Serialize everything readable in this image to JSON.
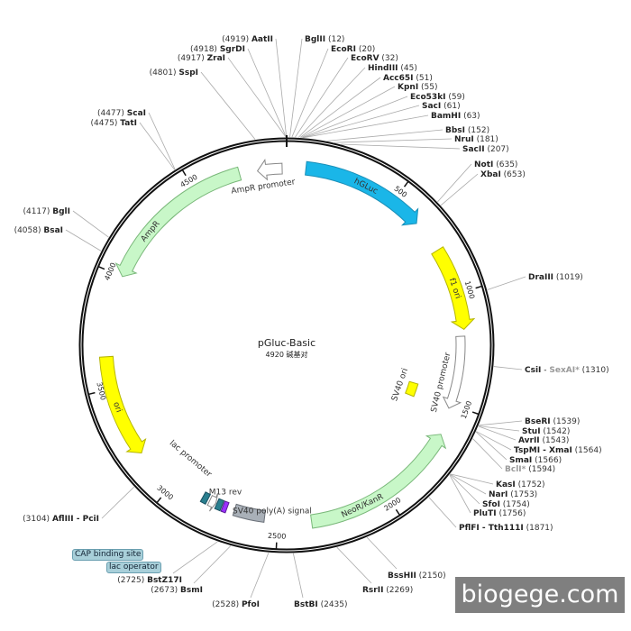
{
  "plasmid": {
    "name": "pGluc-Basic",
    "length_label": "4920 碱基对",
    "length": 4920
  },
  "ticks": [
    500,
    1000,
    1500,
    2000,
    2500,
    3000,
    3500,
    4000,
    4500
  ],
  "features": [
    {
      "name": "hGLuc",
      "start": 85,
      "end": 640,
      "dir": 1,
      "kind": "arrow",
      "color": "#1ab6e8",
      "stroke": "#1a8fb8",
      "label": "hGLuc"
    },
    {
      "name": "f1 ori",
      "start": 790,
      "end": 1160,
      "dir": 1,
      "kind": "arrow",
      "color": "#ffff00",
      "stroke": "#b5b500",
      "label": "f1 ori"
    },
    {
      "name": "SV40 promoter",
      "start": 1190,
      "end": 1520,
      "dir": 1,
      "kind": "arrow",
      "color": "#ffffff",
      "stroke": "#888888",
      "label": "SV40 promoter"
    },
    {
      "name": "SV40 ori",
      "start": 1455,
      "end": 1530,
      "dir": 0,
      "kind": "box",
      "color": "#ffff00",
      "stroke": "#b5b500",
      "label": "SV40 ori"
    },
    {
      "name": "NeoR/KanR",
      "start": 1640,
      "end": 2350,
      "dir": -1,
      "kind": "arrow",
      "color": "#c8f7c8",
      "stroke": "#7ab87a",
      "label": "NeoR/KanR"
    },
    {
      "name": "SV40 poly(A) signal",
      "start": 2560,
      "end": 2700,
      "dir": 0,
      "kind": "box",
      "color": "#a9b0b8",
      "stroke": "#6a7078",
      "label": "SV40 poly(A) signal"
    },
    {
      "name": "M13 rev",
      "start": 2735,
      "end": 2755,
      "dir": 0,
      "kind": "box",
      "color": "#9b30ff",
      "stroke": "#5a1a99",
      "label": "M13 rev"
    },
    {
      "name": "lac operator",
      "start": 2760,
      "end": 2785,
      "dir": 0,
      "kind": "box",
      "color": "#2a7f8f",
      "stroke": "#1a5060",
      "label": ""
    },
    {
      "name": "lac promoter",
      "start": 2790,
      "end": 2820,
      "dir": -1,
      "kind": "arrow",
      "color": "#ffffff",
      "stroke": "#888888",
      "label": "lac promoter"
    },
    {
      "name": "CAP binding site",
      "start": 2830,
      "end": 2855,
      "dir": 0,
      "kind": "box",
      "color": "#2a7f8f",
      "stroke": "#1a5060",
      "label": ""
    },
    {
      "name": "ori",
      "start": 3190,
      "end": 3640,
      "dir": -1,
      "kind": "arrow",
      "color": "#ffff00",
      "stroke": "#b5b500",
      "label": "ori"
    },
    {
      "name": "AmpR",
      "start": 4000,
      "end": 4710,
      "dir": -1,
      "kind": "arrow",
      "color": "#c8f7c8",
      "stroke": "#7ab87a",
      "label": "AmpR"
    },
    {
      "name": "AmpR promoter",
      "start": 4790,
      "end": 4900,
      "dir": -1,
      "kind": "arrow",
      "color": "#ffffff",
      "stroke": "#888888",
      "label": "AmpR promoter"
    }
  ],
  "sites": [
    {
      "parts": [
        {
          "t": "AatII",
          "c": "nm"
        }
      ],
      "pos": 4919,
      "side": "L"
    },
    {
      "parts": [
        {
          "t": "SgrDI",
          "c": "nm"
        }
      ],
      "pos": 4918,
      "side": "L"
    },
    {
      "parts": [
        {
          "t": "ZraI",
          "c": "nm"
        }
      ],
      "pos": 4917,
      "side": "L"
    },
    {
      "parts": [
        {
          "t": "SspI",
          "c": "nm"
        }
      ],
      "pos": 4801,
      "side": "L"
    },
    {
      "parts": [
        {
          "t": "ScaI",
          "c": "nm"
        }
      ],
      "pos": 4477,
      "side": "L"
    },
    {
      "parts": [
        {
          "t": "TatI",
          "c": "nm"
        }
      ],
      "pos": 4475,
      "side": "L"
    },
    {
      "parts": [
        {
          "t": "BglI",
          "c": "nm"
        }
      ],
      "pos": 4117,
      "side": "L"
    },
    {
      "parts": [
        {
          "t": "BsaI",
          "c": "nm"
        }
      ],
      "pos": 4058,
      "side": "L"
    },
    {
      "parts": [
        {
          "t": "AflIII - PciI",
          "c": "nm"
        }
      ],
      "pos": 3104,
      "side": "L"
    },
    {
      "parts": [
        {
          "t": "BstZ17I",
          "c": "nm"
        }
      ],
      "pos": 2725,
      "side": "L"
    },
    {
      "parts": [
        {
          "t": "BsmI",
          "c": "nm"
        }
      ],
      "pos": 2673,
      "side": "L"
    },
    {
      "parts": [
        {
          "t": "PfoI",
          "c": "nm"
        }
      ],
      "pos": 2528,
      "side": "L"
    },
    {
      "parts": [
        {
          "t": "BstBI",
          "c": "nm"
        }
      ],
      "pos": 2435,
      "side": "R"
    },
    {
      "parts": [
        {
          "t": "RsrII",
          "c": "nm"
        }
      ],
      "pos": 2269,
      "side": "R"
    },
    {
      "parts": [
        {
          "t": "BssHII",
          "c": "nm"
        }
      ],
      "pos": 2150,
      "side": "R"
    },
    {
      "parts": [
        {
          "t": "BglII",
          "c": "nm"
        }
      ],
      "pos": 12,
      "side": "R"
    },
    {
      "parts": [
        {
          "t": "EcoRI",
          "c": "nm"
        }
      ],
      "pos": 20,
      "side": "R"
    },
    {
      "parts": [
        {
          "t": "EcoRV",
          "c": "nm"
        }
      ],
      "pos": 32,
      "side": "R"
    },
    {
      "parts": [
        {
          "t": "HindIII",
          "c": "nm"
        }
      ],
      "pos": 45,
      "side": "R"
    },
    {
      "parts": [
        {
          "t": "Acc65I",
          "c": "nm"
        }
      ],
      "pos": 51,
      "side": "R"
    },
    {
      "parts": [
        {
          "t": "KpnI",
          "c": "nm"
        }
      ],
      "pos": 55,
      "side": "R"
    },
    {
      "parts": [
        {
          "t": "Eco53kI",
          "c": "nm"
        }
      ],
      "pos": 59,
      "side": "R"
    },
    {
      "parts": [
        {
          "t": "SacI",
          "c": "nm"
        }
      ],
      "pos": 61,
      "side": "R"
    },
    {
      "parts": [
        {
          "t": "BamHI",
          "c": "nm"
        }
      ],
      "pos": 63,
      "side": "R"
    },
    {
      "parts": [
        {
          "t": "BbsI",
          "c": "nm"
        }
      ],
      "pos": 152,
      "side": "R"
    },
    {
      "parts": [
        {
          "t": "NruI",
          "c": "nm"
        }
      ],
      "pos": 181,
      "side": "R"
    },
    {
      "parts": [
        {
          "t": "SacII",
          "c": "nm"
        }
      ],
      "pos": 207,
      "side": "R"
    },
    {
      "parts": [
        {
          "t": "NotI",
          "c": "nm"
        }
      ],
      "pos": 635,
      "side": "R"
    },
    {
      "parts": [
        {
          "t": "XbaI",
          "c": "nm"
        }
      ],
      "pos": 653,
      "side": "R"
    },
    {
      "parts": [
        {
          "t": "DraIII",
          "c": "nm"
        }
      ],
      "pos": 1019,
      "side": "R"
    },
    {
      "parts": [
        {
          "t": "CsiI",
          "c": "nm"
        },
        {
          "t": " - ",
          "c": "dash"
        },
        {
          "t": "SexAI*",
          "c": "grey"
        }
      ],
      "pos": 1310,
      "side": "R"
    },
    {
      "parts": [
        {
          "t": "BseRI",
          "c": "nm"
        }
      ],
      "pos": 1539,
      "side": "R"
    },
    {
      "parts": [
        {
          "t": "StuI",
          "c": "nm"
        }
      ],
      "pos": 1542,
      "side": "R"
    },
    {
      "parts": [
        {
          "t": "AvrII",
          "c": "nm"
        }
      ],
      "pos": 1543,
      "side": "R"
    },
    {
      "parts": [
        {
          "t": "TspMI - XmaI",
          "c": "nm"
        }
      ],
      "pos": 1564,
      "side": "R"
    },
    {
      "parts": [
        {
          "t": "SmaI",
          "c": "nm"
        }
      ],
      "pos": 1566,
      "side": "R"
    },
    {
      "parts": [
        {
          "t": "BclI*",
          "c": "grey"
        }
      ],
      "pos": 1594,
      "side": "R"
    },
    {
      "parts": [
        {
          "t": "KasI",
          "c": "nm"
        }
      ],
      "pos": 1752,
      "side": "R"
    },
    {
      "parts": [
        {
          "t": "NarI",
          "c": "nm"
        }
      ],
      "pos": 1753,
      "side": "R"
    },
    {
      "parts": [
        {
          "t": "SfoI",
          "c": "nm"
        }
      ],
      "pos": 1754,
      "side": "R"
    },
    {
      "parts": [
        {
          "t": "PluTI",
          "c": "nm"
        }
      ],
      "pos": 1756,
      "side": "R"
    },
    {
      "parts": [
        {
          "t": "PflFI - Tth111I",
          "c": "nm"
        }
      ],
      "pos": 1871,
      "side": "R"
    }
  ],
  "tags": {
    "cap": "CAP binding site",
    "lac_operator": "lac operator"
  },
  "watermark": "biogege.com"
}
